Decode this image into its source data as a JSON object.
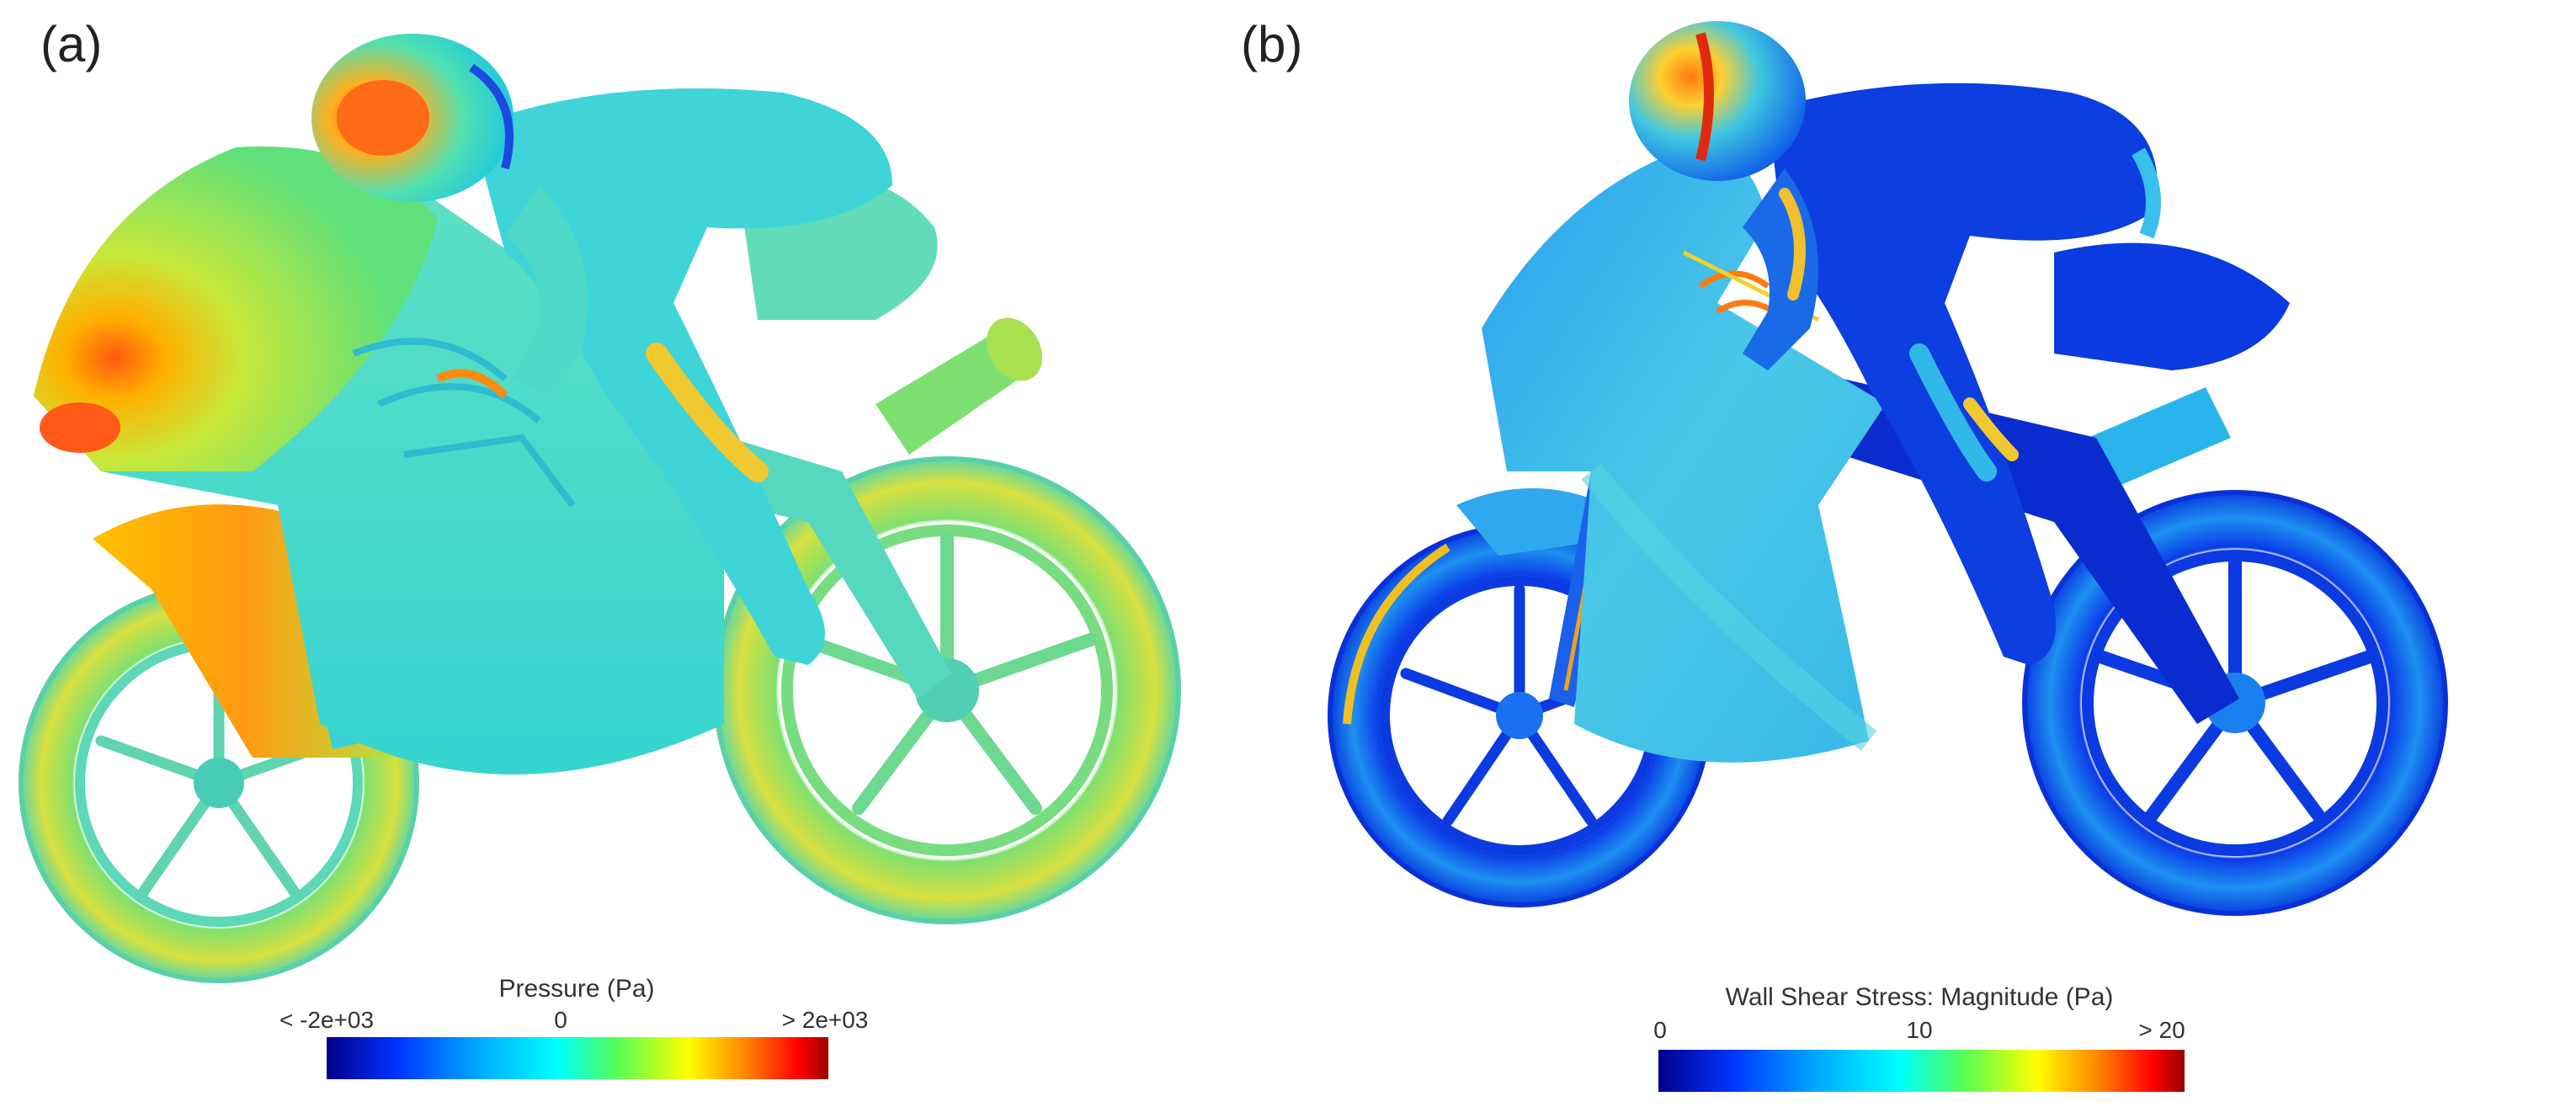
{
  "panels": [
    {
      "label": "(a)",
      "colorbar": {
        "title": "Pressure (Pa)",
        "min_label": "< -2e+03",
        "mid_label": "0",
        "max_label": "> 2e+03"
      }
    },
    {
      "label": "(b)",
      "colorbar": {
        "title": "Wall Shear Stress: Magnitude (Pa)",
        "min_label": "0",
        "mid_label": "10",
        "max_label": "> 20"
      }
    }
  ],
  "colors": {
    "scale_low": "#00008a",
    "scale_blue": "#0033ff",
    "scale_cyan": "#00ffff",
    "scale_green": "#55ff55",
    "scale_yellow": "#ffff00",
    "scale_orange": "#ff8000",
    "scale_high": "#9a0000"
  }
}
